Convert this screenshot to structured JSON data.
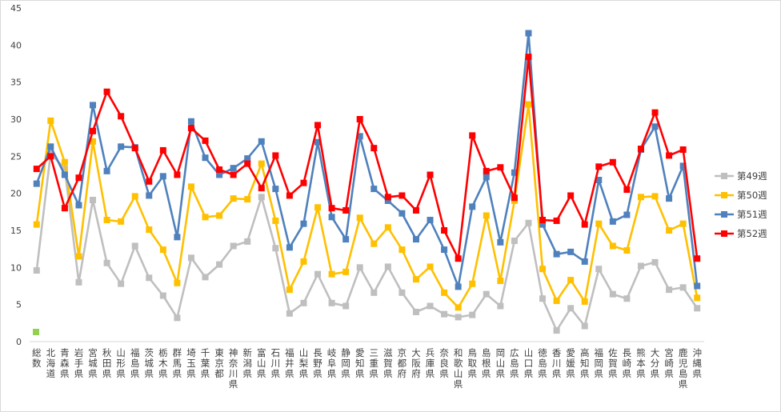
{
  "chart_data": {
    "type": "line",
    "ylim": [
      0,
      45
    ],
    "yticks": [
      0,
      5,
      10,
      15,
      20,
      25,
      30,
      35,
      40,
      45
    ],
    "grid": false,
    "legend_position": "right",
    "categories": [
      "総数",
      "北海道",
      "青森県",
      "岩手県",
      "宮城県",
      "秋田県",
      "山形県",
      "福島県",
      "茨城県",
      "栃木県",
      "群馬県",
      "埼玉県",
      "千葉県",
      "東京都",
      "神奈川県",
      "新潟県",
      "富山県",
      "石川県",
      "福井県",
      "山梨県",
      "長野県",
      "岐阜県",
      "静岡県",
      "愛知県",
      "三重県",
      "滋賀県",
      "京都府",
      "大阪府",
      "兵庫県",
      "奈良県",
      "和歌山県",
      "鳥取県",
      "島根県",
      "岡山県",
      "広島県",
      "山口県",
      "徳島県",
      "香川県",
      "愛媛県",
      "高知県",
      "福岡県",
      "佐賀県",
      "長崎県",
      "熊本県",
      "大分県",
      "宮崎県",
      "鹿児島県",
      "沖縄県"
    ],
    "series": [
      {
        "name": "第49週",
        "color": "#bfbfbf",
        "marker": "square",
        "values": [
          9.6,
          25.4,
          23.3,
          8.0,
          19.1,
          10.6,
          7.8,
          12.9,
          8.6,
          6.2,
          3.2,
          11.3,
          8.7,
          10.4,
          12.9,
          13.5,
          19.5,
          12.6,
          3.8,
          5.2,
          9.1,
          5.2,
          4.8,
          10.0,
          6.6,
          10.1,
          6.6,
          4.0,
          4.8,
          3.7,
          3.3,
          3.6,
          6.4,
          4.8,
          13.6,
          16.0,
          5.8,
          1.5,
          4.5,
          2.1,
          9.8,
          6.4,
          5.8,
          10.2,
          10.7,
          7.0,
          7.3,
          4.5
        ]
      },
      {
        "name": "第50週",
        "color": "#ffc000",
        "marker": "square",
        "values": [
          15.8,
          29.8,
          24.2,
          11.5,
          27.0,
          16.4,
          16.2,
          19.6,
          15.1,
          12.4,
          7.9,
          20.9,
          16.8,
          17.0,
          19.3,
          19.2,
          24.0,
          16.3,
          7.0,
          10.8,
          18.1,
          9.1,
          9.4,
          16.7,
          13.2,
          15.4,
          12.4,
          8.4,
          10.1,
          6.6,
          4.6,
          7.8,
          17.0,
          8.2,
          19.0,
          32.0,
          9.8,
          5.5,
          8.3,
          5.4,
          15.9,
          12.9,
          12.3,
          19.5,
          19.6,
          15.0,
          15.9,
          5.9
        ]
      },
      {
        "name": "第51週",
        "color": "#4f81bd",
        "marker": "square",
        "values": [
          21.3,
          26.3,
          22.5,
          18.4,
          31.9,
          23.0,
          26.3,
          26.2,
          19.7,
          22.3,
          14.1,
          29.7,
          24.8,
          22.5,
          23.4,
          24.7,
          27.0,
          20.6,
          12.7,
          15.9,
          26.9,
          16.8,
          13.8,
          27.7,
          20.6,
          19.0,
          17.3,
          13.8,
          16.4,
          12.4,
          7.4,
          18.2,
          22.2,
          13.4,
          22.8,
          41.6,
          15.8,
          11.8,
          12.1,
          10.8,
          21.8,
          16.2,
          17.1,
          25.9,
          29.0,
          19.3,
          23.7,
          7.5
        ]
      },
      {
        "name": "第52週",
        "color": "#ff0000",
        "marker": "square",
        "values": [
          23.3,
          25.0,
          18.0,
          22.1,
          28.4,
          33.7,
          30.4,
          26.1,
          21.6,
          25.8,
          22.5,
          28.8,
          27.1,
          23.2,
          22.5,
          24.0,
          20.7,
          25.1,
          19.7,
          21.4,
          29.2,
          18.0,
          17.7,
          30.0,
          26.1,
          19.5,
          19.7,
          17.7,
          22.5,
          15.0,
          11.2,
          27.8,
          23.0,
          23.5,
          19.4,
          38.4,
          16.4,
          16.3,
          19.7,
          15.8,
          23.6,
          24.2,
          20.5,
          26.0,
          30.9,
          25.1,
          25.9,
          11.2
        ]
      }
    ]
  }
}
